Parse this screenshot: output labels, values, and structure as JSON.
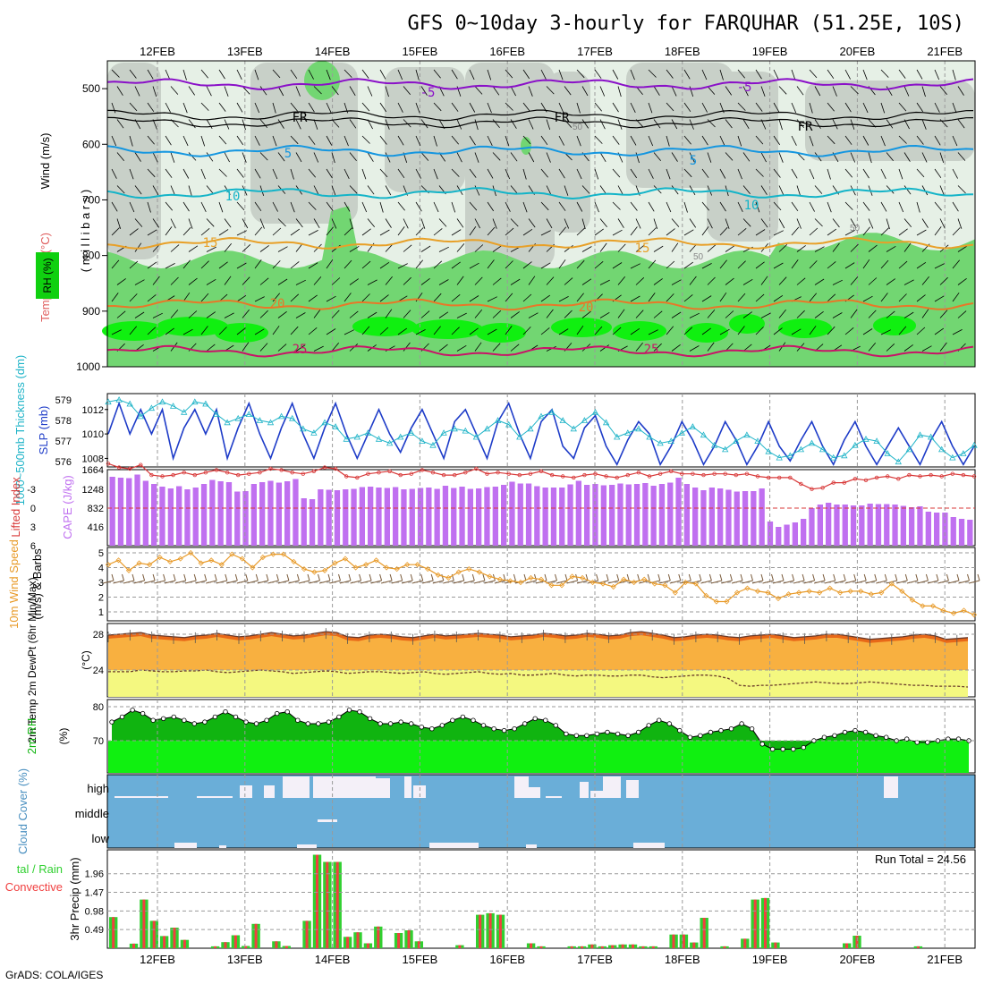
{
  "title": "GFS 0~10day 3-hourly for FARQUHAR (51.25E, 10S)",
  "credit": "GrADS: COLA/IGES",
  "chart_data": {
    "type": "meteogram",
    "colors": {
      "frame": "#000000",
      "grid": "#9a9a9a",
      "rh_dark": "#72d672",
      "rh_bright": "#10f010",
      "rh_mid": "#c8d0c8",
      "rh_light": "#e6f0e6",
      "temp_purple": "#8a10c8",
      "temp_blue": "#1496e0",
      "temp_cyan": "#14b4c8",
      "temp_orange": "#e8a028",
      "temp_orange2": "#e87828",
      "temp_magenta": "#c81468",
      "slp": "#1e3cc8",
      "thick": "#20b4c8",
      "cape": "#c070f0",
      "lifted": "#d83838",
      "wind_speed": "#e89a28",
      "wind_barb": "#7a5a3a",
      "temp_fill": "#f8b040",
      "temp_fill_top": "#e86818",
      "dew_fill": "#f4f880",
      "rh2m_dark": "#10b410",
      "rh2m_bright": "#10f010",
      "cloud_bg": "#6aaed8",
      "cloud_clear": "#f4f0f8",
      "precip_total": "#30d030",
      "precip_conv": "#f04040"
    },
    "dates": [
      "12FEB",
      "13FEB",
      "14FEB",
      "15FEB",
      "16FEB",
      "17FEB",
      "18FEB",
      "19FEB",
      "20FEB",
      "21FEB"
    ],
    "dates_bottom": [
      "12FEB",
      "13FEB",
      "14FEB",
      "15FEB",
      "16FEB",
      "17FEB",
      "18FEB",
      "19FEB",
      "20FEB",
      "21FEB"
    ],
    "upper_panel": {
      "title_parts": [
        "Wind (m/s)",
        "Temperature (°C)",
        "RH (%)"
      ],
      "yaxis_label": "( m i l l i b a r s )",
      "levels": [
        "500",
        "600",
        "700",
        "800",
        "900",
        "1000"
      ],
      "level_values": [
        500,
        600,
        700,
        800,
        900,
        1000
      ],
      "ylim": [
        450,
        1000
      ],
      "isotherms": [
        {
          "label": "-5",
          "labels_at": [
            "12FEB",
            "18FEB"
          ],
          "level": 492
        },
        {
          "label": "FR",
          "labels_at": [
            "13FEB",
            "16FEB",
            "19FEB"
          ],
          "level": 548
        },
        {
          "label": "-5x",
          "display": "5",
          "labels_at": [
            "13FEB",
            "17FEB"
          ],
          "level": 612
        },
        {
          "label": "10",
          "labels_at": [
            "13FEB",
            "18FEB"
          ],
          "level": 688
        },
        {
          "label": "15",
          "labels_at": [
            "12FEB",
            "17FEB"
          ],
          "level": 778
        },
        {
          "label": "20",
          "labels_at": [
            "13FEB",
            "16FEB"
          ],
          "level": 888
        },
        {
          "label": "25",
          "labels_at": [
            "14FEB",
            "17FEB"
          ],
          "level": 972
        }
      ],
      "isotherm_text": [
        "-5",
        "FR",
        "FR",
        "FR",
        "5",
        "5",
        "10",
        "10",
        "15",
        "15",
        "20",
        "20",
        "25",
        "25",
        "-5"
      ],
      "rh_contour_labels": [
        "50",
        "50",
        "50"
      ]
    },
    "slp_panel": {
      "left_label": "1000~500mb Thickness (dm)",
      "right_label": "SLP (mb)",
      "thickness_ticks": [
        "579",
        "578",
        "577",
        "576"
      ],
      "slp_ticks": [
        "1012",
        "1010",
        "1008"
      ],
      "slp": [
        1010,
        1012.5,
        1010,
        1012,
        1010,
        1012,
        1008,
        1010.5,
        1012,
        1010,
        1012,
        1008,
        1010.5,
        1012.5,
        1010,
        1008,
        1010.5,
        1012.5,
        1010,
        1008,
        1010.5,
        1012.5,
        1010,
        1008,
        1010,
        1012,
        1010,
        1008.5,
        1010.5,
        1012,
        1010,
        1008,
        1011,
        1012,
        1010,
        1008,
        1011,
        1012.5,
        1010,
        1008,
        1011,
        1012,
        1009,
        1008,
        1010.5,
        1011.5,
        1009,
        1007.5,
        1009.5,
        1011,
        1010,
        1007.5,
        1009,
        1011,
        1009.5,
        1007.5,
        1009,
        1011,
        1009.5,
        1007.5,
        1009,
        1011,
        1009,
        1007.8,
        1009.5,
        1011,
        1009,
        1007.5,
        1009.5,
        1011,
        1009,
        1007.5,
        1009,
        1010.5,
        1009,
        1007.5,
        1009.5,
        1011,
        1009,
        1007.5,
        1009
      ],
      "thickness": [
        578.9,
        579,
        578.8,
        578.2,
        578.6,
        578.9,
        578.7,
        578.4,
        578.9,
        578.8,
        578.3,
        577.9,
        578.1,
        578.3,
        578,
        577.9,
        578.2,
        578.1,
        577.6,
        577.4,
        577.9,
        577.7,
        577.1,
        577.2,
        577.4,
        577.1,
        576.9,
        577.2,
        577.4,
        577,
        576.8,
        577.4,
        577.6,
        577.5,
        577.2,
        577.6,
        578,
        577.8,
        577.2,
        577.6,
        578.2,
        578.4,
        578,
        577.6,
        578,
        578.4,
        577.9,
        577.2,
        577.4,
        577.6,
        577.2,
        576.9,
        577,
        577.4,
        577.7,
        577.3,
        576.8,
        576.6,
        577,
        577.3,
        577,
        576.5,
        576.2,
        576.3,
        576.6,
        576.9,
        576.6,
        576.2,
        576.3,
        576.8,
        577.1,
        577,
        576.4,
        576,
        576.6,
        577.3,
        577.2,
        576.6,
        576.2,
        576.4,
        576.8
      ]
    },
    "cape_panel": {
      "left_label": "Lifted Index",
      "right_label": "CAPE (J/kg)",
      "li_ticks": [
        "-3",
        "0",
        "3",
        "6"
      ],
      "cape_ticks": [
        "1664",
        "1248",
        "832",
        "416"
      ],
      "cape": [
        1540,
        1520,
        1510,
        1590,
        1450,
        1380,
        1320,
        1280,
        1330,
        1260,
        1300,
        1380,
        1470,
        1440,
        1420,
        1210,
        1220,
        1380,
        1420,
        1450,
        1410,
        1440,
        1490,
        1060,
        1040,
        1260,
        1250,
        1240,
        1260,
        1270,
        1310,
        1320,
        1300,
        1290,
        1310,
        1260,
        1270,
        1290,
        1300,
        1270,
        1340,
        1290,
        1320,
        1270,
        1280,
        1310,
        1320,
        1360,
        1430,
        1390,
        1390,
        1330,
        1300,
        1300,
        1300,
        1370,
        1450,
        1360,
        1380,
        1350,
        1360,
        1390,
        1370,
        1380,
        1400,
        1340,
        1380,
        1410,
        1520,
        1380,
        1300,
        1240,
        1300,
        1280,
        1250,
        1210,
        1220,
        1220,
        1280,
        540,
        420,
        470,
        520,
        600,
        840,
        920,
        960,
        920,
        920,
        900,
        900,
        940,
        930,
        930,
        920,
        890,
        860,
        880,
        760,
        740,
        740,
        640,
        600,
        580
      ],
      "lifted": [
        -3.5,
        -3.2,
        -3.1,
        -3.4,
        -2.6,
        -2.5,
        -2.6,
        -2.8,
        -2.6,
        -2.8,
        -3,
        -2.8,
        -2.6,
        -2.7,
        -2.8,
        -3.1,
        -3,
        -2.8,
        -2.7,
        -2.9,
        -3.2,
        -3.1,
        -2.5,
        -2.4,
        -2.7,
        -2.8,
        -2.9,
        -2.6,
        -2.7,
        -3,
        -2.8,
        -2.6,
        -2.6,
        -2.8,
        -3.1,
        -2.7,
        -2.8,
        -2.7,
        -2.6,
        -2.7,
        -2.9,
        -2.6,
        -2.5,
        -2.4,
        -2.6,
        -2.7,
        -2.5,
        -2.4,
        -2.6,
        -2.8,
        -2.5,
        -2.7,
        -2.9,
        -2.7,
        -2.7,
        -2.6,
        -2.7,
        -2.7,
        -2.6,
        -2.7,
        -2.5,
        -2.4,
        -2.4,
        -2.4,
        -1.9,
        -1.5,
        -1.6,
        -2.0,
        -2.0,
        -2.3,
        -2.2,
        -2.4,
        -2.5,
        -2.3,
        -2.6,
        -2.5,
        -2.6,
        -2.5,
        -2.7,
        -2.6,
        -2.5
      ]
    },
    "wind_panel": {
      "left_label": "10m Wind Speed",
      "right_label": "(m/s) & Barbs",
      "ticks": [
        "5",
        "4",
        "3",
        "2",
        "1"
      ],
      "speed": [
        4.2,
        4.5,
        3.8,
        4.3,
        4.2,
        4.7,
        4.4,
        4.6,
        5.0,
        4.3,
        4.5,
        4.2,
        4.9,
        4.6,
        4.0,
        4.7,
        4.9,
        4.9,
        4.4,
        3.9,
        3.7,
        3.8,
        4.3,
        4.6,
        4.0,
        4.2,
        4.5,
        4.0,
        3.9,
        4.2,
        4.2,
        3.9,
        3.5,
        3.3,
        3.7,
        3.9,
        3.7,
        3.4,
        3.2,
        3.1,
        3.0,
        3.3,
        3.2,
        2.8,
        2.8,
        3.4,
        3.3,
        3.0,
        2.9,
        2.7,
        3.2,
        3.0,
        3.2,
        2.9,
        2.8,
        2.3,
        3.0,
        2.9,
        2.1,
        1.7,
        1.7,
        2.3,
        2.6,
        2.4,
        2.3,
        1.9,
        2.2,
        2.3,
        2.4,
        2.3,
        2.6,
        2.3,
        2.4,
        2.4,
        2.2,
        2.3,
        2.9,
        2.4,
        1.8,
        1.4,
        1.4,
        1.1,
        0.9,
        1.1,
        0.8
      ],
      "barb_speed": [
        3,
        3,
        3,
        3,
        3,
        3,
        3,
        3,
        3,
        3,
        3,
        3,
        3,
        3,
        3,
        3,
        3,
        3,
        3,
        3,
        3,
        3,
        3,
        3,
        3,
        3,
        3,
        3,
        3,
        3,
        3,
        3,
        3,
        3,
        3,
        3,
        3,
        3,
        3,
        3,
        3,
        3,
        3,
        3,
        3,
        3,
        3,
        3,
        3,
        3,
        3,
        3,
        3,
        3,
        3,
        3,
        3,
        3,
        3,
        3,
        3,
        3,
        3,
        3,
        3,
        3,
        3,
        3,
        3,
        3,
        3,
        3,
        3,
        3,
        3,
        3,
        3,
        3,
        3,
        3,
        3,
        3,
        3,
        3,
        3
      ]
    },
    "temp_panel": {
      "left_label": "2m Temp 2m DewPt (6hr Min/Max)",
      "right_label": "(°C)",
      "ticks": [
        "28",
        "24"
      ],
      "temp": [
        28.3,
        28.4,
        28.5,
        28.6,
        28.3,
        28.2,
        28.1,
        28.0,
        28.2,
        28.3,
        28.5,
        28.3,
        28.1,
        28.2,
        28.4,
        28.6,
        28.4,
        28.2,
        28.3,
        28.5,
        28.7,
        28.6,
        28.1,
        28.0,
        28.3,
        28.4,
        28.3,
        28.1,
        28.0,
        28.2,
        28.4,
        28.2,
        28.3,
        28.4,
        28.5,
        28.4,
        28.3,
        28.1,
        28.2,
        28.3,
        28.5,
        28.4,
        28.2,
        28.3,
        28.5,
        28.4,
        28.2,
        28.3,
        28.6,
        28.7,
        28.5,
        28.3,
        28.0,
        28.1,
        28.3,
        28.4,
        28.3,
        28.1,
        28.0,
        28.2,
        28.3,
        28.4,
        28.2,
        28.0,
        28.1,
        28.2,
        28.4,
        28.4,
        28.2,
        28.0,
        27.8,
        27.9,
        28.0,
        28.1,
        28.3,
        28.4,
        28.2,
        27.8,
        27.9,
        28.0
      ],
      "dewpt": [
        24.0,
        24.0,
        24.0,
        24.2,
        24.1,
        24.0,
        24.0,
        24.1,
        24.1,
        24.2,
        24.0,
        23.9,
        24.0,
        24.1,
        24.2,
        24.1,
        24.0,
        23.8,
        23.9,
        24.0,
        24.1,
        24.0,
        23.8,
        23.9,
        24.0,
        24.0,
        23.9,
        23.8,
        23.9,
        24.0,
        23.8,
        23.7,
        23.8,
        23.9,
        24.0,
        23.8,
        23.7,
        23.8,
        23.6,
        23.6,
        23.7,
        23.8,
        23.6,
        23.5,
        23.6,
        23.6,
        23.5,
        23.5,
        23.6,
        23.6,
        23.4,
        23.3,
        23.4,
        23.5,
        23.6,
        23.6,
        23.5,
        23.2,
        22.4,
        22.3,
        22.4,
        22.4,
        22.5,
        22.6,
        22.7,
        22.8,
        22.7,
        22.6,
        22.6,
        22.7,
        22.8,
        22.7,
        22.6,
        22.5,
        22.4,
        22.4,
        22.3,
        22.3,
        22.3,
        22.2
      ]
    },
    "rh_panel": {
      "left_label": "2m RH",
      "right_label": "(%)",
      "ticks": [
        "80",
        "70"
      ],
      "rh": [
        75.5,
        77,
        79,
        78,
        76,
        76.5,
        77,
        76,
        75,
        75.5,
        77,
        78.5,
        77,
        75.5,
        75,
        76,
        78,
        78.5,
        76,
        75,
        75,
        75.5,
        77,
        79,
        78.5,
        76.5,
        75,
        75,
        75.5,
        75,
        74,
        73.5,
        74.5,
        76,
        77,
        76,
        74.5,
        73.5,
        73,
        73.5,
        75,
        76.5,
        76,
        74.5,
        72,
        71.5,
        71.5,
        72,
        72.5,
        72,
        71.5,
        72.5,
        74.5,
        76,
        75,
        73,
        71,
        71.5,
        72.5,
        73,
        73.5,
        75,
        73.5,
        69,
        67.5,
        67.5,
        67.5,
        68,
        70,
        71,
        71.5,
        72.5,
        73,
        72.5,
        71.5,
        71,
        70,
        70.5,
        69.5,
        69.5,
        70,
        70.5,
        70.5,
        70
      ]
    },
    "cloud_panel": {
      "label": "Cloud Cover (%)",
      "levels": [
        "high",
        "middle",
        "low"
      ]
    },
    "precip_panel": {
      "left_label": "Total / Rain Convective",
      "right_label": "3hr Precip (mm)",
      "ticks": [
        "1.96",
        "1.47",
        "0.98",
        "0.49"
      ],
      "run_total": "Run Total = 24.56",
      "precip": [
        0.82,
        0,
        0.12,
        1.28,
        0.72,
        0.32,
        0.54,
        0.22,
        0,
        0,
        0.05,
        0.16,
        0.34,
        0.06,
        0.64,
        0,
        0.18,
        0.06,
        0,
        0.72,
        2.46,
        2.27,
        2.27,
        0.3,
        0.42,
        0.13,
        0.57,
        0,
        0.4,
        0.47,
        0.18,
        0,
        0,
        0,
        0.08,
        0,
        0.88,
        0.92,
        0.88,
        0,
        0,
        0.13,
        0.05,
        0,
        0,
        0.05,
        0.05,
        0.1,
        0.05,
        0.08,
        0.1,
        0.1,
        0.05,
        0.05,
        0,
        0.36,
        0.36,
        0.15,
        0.8,
        0,
        0.05,
        0,
        0.25,
        1.28,
        1.32,
        0.15,
        0,
        0,
        0,
        0,
        0,
        0,
        0.13,
        0.33,
        0,
        0,
        0,
        0,
        0,
        0.05,
        0,
        0,
        0,
        0,
        0
      ]
    }
  }
}
